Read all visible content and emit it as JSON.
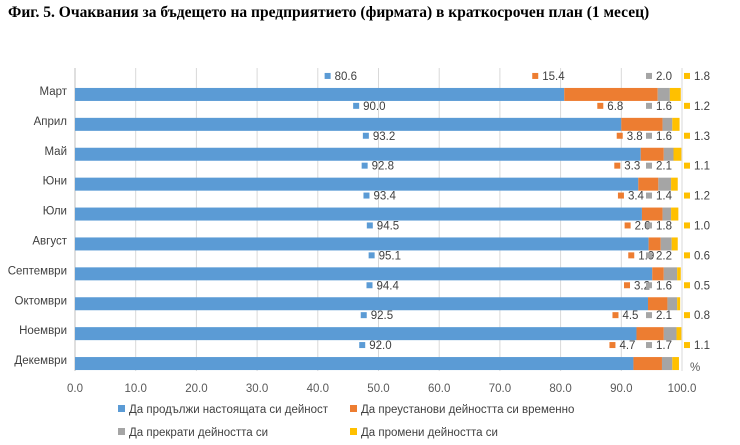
{
  "chart_data": {
    "type": "bar",
    "orientation": "horizontal",
    "stacked": true,
    "title": "Фиг. 5. Очаквания за бъдещето на предприятието (фирмата) в краткосрочен план (1 месец)",
    "categories": [
      "Март",
      "Април",
      "Май",
      "Юни",
      "Юли",
      "Август",
      "Септември",
      "Октомври",
      "Ноември",
      "Декември"
    ],
    "series": [
      {
        "name": "Да продължи настоящата си дейност",
        "color": "#5b9bd5",
        "values": [
          80.6,
          90.0,
          93.2,
          92.8,
          93.4,
          94.5,
          95.1,
          94.4,
          92.5,
          92.0
        ],
        "labels": [
          "80.6",
          "90.0",
          "93.2",
          "92.8",
          "93.4",
          "94.5",
          "95.1",
          "94.4",
          "92.5",
          "92.0"
        ]
      },
      {
        "name": "Да преустанови дейността си временно",
        "color": "#ed7d31",
        "values": [
          15.4,
          6.8,
          3.8,
          3.3,
          3.4,
          2.0,
          1.9,
          3.2,
          4.5,
          4.7
        ],
        "labels": [
          "15.4",
          "6.8",
          "3.8",
          "3.3",
          "3.4",
          "2.0",
          "1.9",
          "3.2",
          "4.5",
          "4.7"
        ]
      },
      {
        "name": "Да прекрати дейността си",
        "color": "#a5a5a5",
        "values": [
          2.0,
          1.6,
          1.6,
          2.1,
          1.4,
          1.8,
          2.2,
          1.6,
          2.1,
          1.7
        ],
        "labels": [
          "2.0",
          "1.6",
          "1.6",
          "2.1",
          "1.4",
          "1.8",
          "2.2",
          "1.6",
          "2.1",
          "1.7"
        ]
      },
      {
        "name": "Да промени дейността си",
        "color": "#ffc000",
        "values": [
          1.8,
          1.2,
          1.3,
          1.1,
          1.2,
          1.0,
          0.6,
          0.5,
          0.8,
          1.1
        ],
        "labels": [
          "1.8",
          "1.2",
          "1.3",
          "1.1",
          "1.2",
          "1.0",
          "0.6",
          "0.5",
          "0.8",
          "1.1"
        ]
      }
    ],
    "xlim": [
      0,
      100
    ],
    "xticks": [
      "0.0",
      "10.0",
      "20.0",
      "30.0",
      "40.0",
      "50.0",
      "60.0",
      "70.0",
      "80.0",
      "90.0",
      "100.0"
    ],
    "xlabel": "%",
    "gridlines": true,
    "legend_position": "bottom"
  }
}
